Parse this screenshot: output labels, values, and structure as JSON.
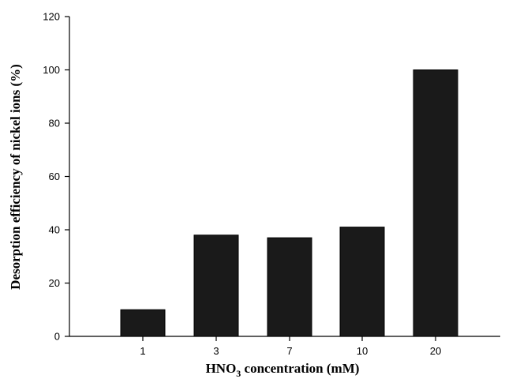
{
  "chart_data": {
    "type": "bar",
    "categories": [
      "1",
      "3",
      "7",
      "10",
      "20"
    ],
    "values": [
      10,
      38,
      37,
      41,
      100
    ],
    "title": "",
    "xlabel": {
      "main": "HNO",
      "sub": "3",
      "rest": " concentration (mM)"
    },
    "ylabel": "Desorption efficiency of nickel ions (%)",
    "ylim": [
      0,
      120
    ],
    "yticks": [
      0,
      20,
      40,
      60,
      80,
      100,
      120
    ],
    "grid": false,
    "legend": "none",
    "bar_color": "#1a1a1a"
  }
}
